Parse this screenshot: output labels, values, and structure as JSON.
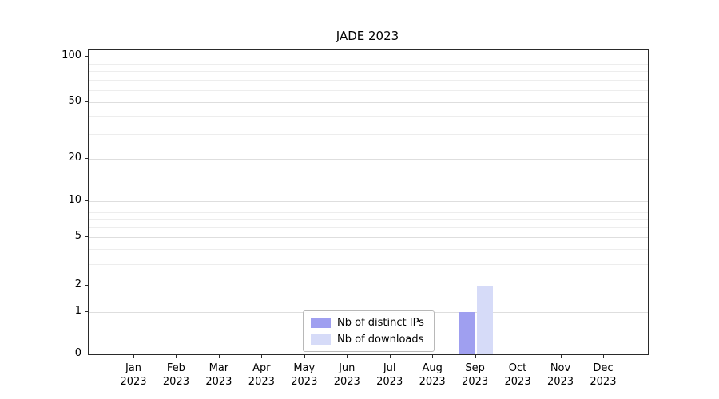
{
  "chart_data": {
    "type": "bar",
    "title": "JADE 2023",
    "categories": [
      "Jan",
      "Feb",
      "Mar",
      "Apr",
      "May",
      "Jun",
      "Jul",
      "Aug",
      "Sep",
      "Oct",
      "Nov",
      "Dec"
    ],
    "year_label": "2023",
    "series": [
      {
        "name": "Nb of distinct IPs",
        "color": "#9f9ff0",
        "values": [
          0,
          0,
          0,
          0,
          0,
          0,
          0,
          0,
          1,
          0,
          0,
          0
        ]
      },
      {
        "name": "Nb of downloads",
        "color": "#d6dbf8",
        "values": [
          0,
          0,
          0,
          0,
          0,
          0,
          0,
          0,
          2,
          0,
          0,
          0
        ]
      }
    ],
    "yticks": [
      0,
      1,
      2,
      5,
      10,
      20,
      50,
      100
    ],
    "minor_yticks": [
      3,
      4,
      6,
      7,
      8,
      9,
      30,
      40,
      60,
      70,
      80,
      90
    ],
    "ylim": [
      0,
      100
    ],
    "yscale": "symlog",
    "grid": "horizontal",
    "legend_position": "lower-center"
  }
}
